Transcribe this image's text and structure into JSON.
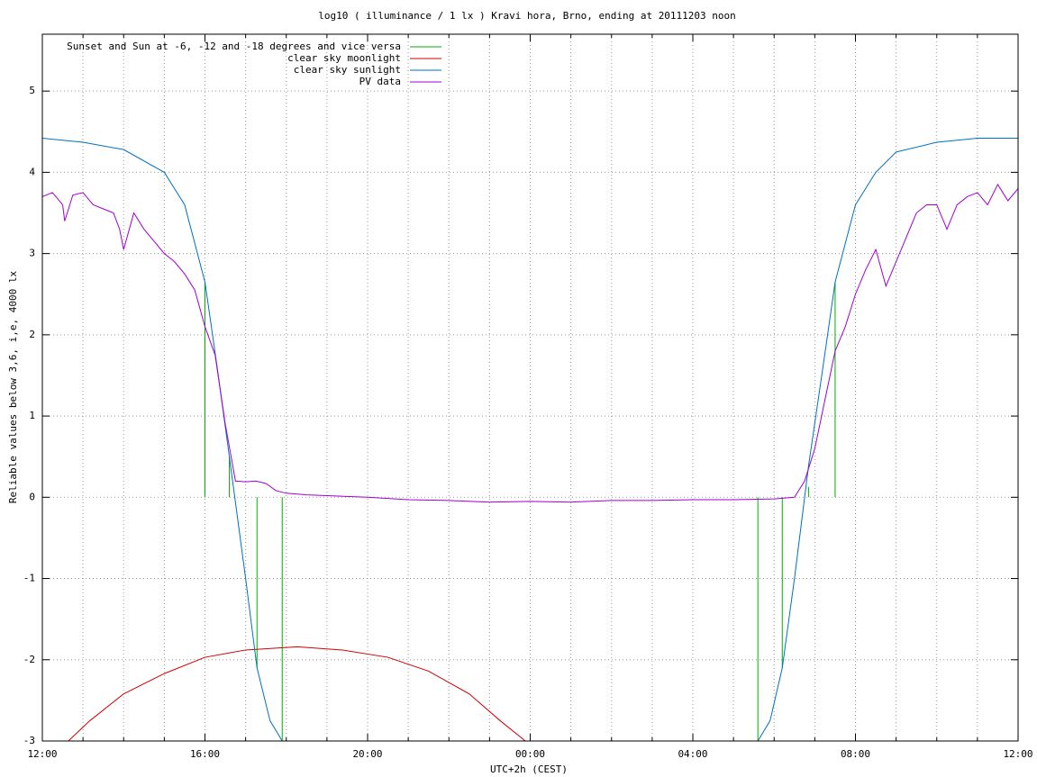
{
  "chart_data": {
    "type": "line",
    "title": "log10 ( illuminance / 1 lx ) Kravi hora, Brno, ending at 20111203 noon",
    "xlabel": "UTC+2h (CEST)",
    "ylabel": "Reliable values below 3,6, i,e, 4000 lx",
    "xlim": [
      0,
      24
    ],
    "xticks": [
      {
        "value": 0,
        "label": "12:00"
      },
      {
        "value": 4,
        "label": "16:00"
      },
      {
        "value": 8,
        "label": "20:00"
      },
      {
        "value": 12,
        "label": "00:00"
      },
      {
        "value": 16,
        "label": "04:00"
      },
      {
        "value": 20,
        "label": "08:00"
      },
      {
        "value": 24,
        "label": "12:00"
      }
    ],
    "xgrid": [
      1,
      2,
      3,
      5,
      6,
      7,
      9,
      10,
      11,
      13,
      14,
      15,
      17,
      18,
      19,
      21,
      22,
      23
    ],
    "ylim": [
      -3,
      5.7
    ],
    "yticks": [
      -3,
      -2,
      -1,
      0,
      1,
      2,
      3,
      4,
      5
    ],
    "grid": true,
    "legend": "top-left",
    "series": [
      {
        "name": "Sunset and Sun at -6, -12 and -18 degrees and vice versa",
        "color": "#00b000",
        "x": [
          4,
          4,
          null,
          4.6,
          4.6,
          null,
          5.28,
          5.28,
          null,
          5.9,
          5.9,
          null,
          17.6,
          17.6,
          null,
          18.2,
          18.2,
          null,
          18.85,
          18.85,
          null,
          19.5,
          19.5
        ],
        "values": [
          0,
          2.65,
          null,
          0,
          0.5,
          null,
          0,
          -2.1,
          null,
          0,
          -3,
          null,
          0,
          -3,
          null,
          0,
          -2.1,
          null,
          0,
          0.13,
          null,
          0,
          2.65
        ]
      },
      {
        "name": "clear sky moonlight",
        "color": "#d00000",
        "x": [
          0.64,
          1.17,
          2,
          3,
          4,
          5,
          6.27,
          7.38,
          8.5,
          9.5,
          10.5,
          11.26,
          11.88
        ],
        "values": [
          -3,
          -2.75,
          -2.42,
          -2.17,
          -1.97,
          -1.88,
          -1.84,
          -1.88,
          -1.97,
          -2.14,
          -2.42,
          -2.75,
          -3
        ]
      },
      {
        "name": "clear sky sunlight",
        "color": "#0070c0",
        "x": [
          0,
          1,
          2,
          3,
          3.5,
          4,
          4.3,
          4.6,
          5,
          5.28,
          5.6,
          5.9,
          17.6,
          17.9,
          18.2,
          18.5,
          18.85,
          19.2,
          19.5,
          20,
          20.5,
          21,
          22,
          23,
          24
        ],
        "values": [
          4.42,
          4.37,
          4.28,
          4.0,
          3.6,
          2.65,
          1.6,
          0.5,
          -1.0,
          -2.1,
          -2.75,
          -3,
          -3,
          -2.75,
          -2.1,
          -1.0,
          0.4,
          1.6,
          2.65,
          3.6,
          4.0,
          4.25,
          4.37,
          4.42,
          4.42
        ]
      },
      {
        "name": "PV data",
        "color": "#a000d0",
        "x": [
          0,
          0.25,
          0.5,
          0.55,
          0.75,
          1,
          1.25,
          1.5,
          1.75,
          1.9,
          2,
          2.25,
          2.5,
          2.75,
          3,
          3.25,
          3.5,
          3.75,
          4,
          4.25,
          4.5,
          4.75,
          5,
          5.25,
          5.5,
          5.75,
          6,
          6.5,
          7,
          8,
          9,
          10,
          11,
          12,
          13,
          14,
          15,
          16,
          17,
          18,
          18.5,
          18.75,
          19,
          19.25,
          19.5,
          19.75,
          20,
          20.25,
          20.5,
          20.75,
          21,
          21.25,
          21.5,
          21.75,
          22,
          22.25,
          22.5,
          22.75,
          23,
          23.25,
          23.5,
          23.75,
          24
        ],
        "values": [
          3.7,
          3.75,
          3.6,
          3.4,
          3.72,
          3.75,
          3.6,
          3.55,
          3.5,
          3.3,
          3.05,
          3.5,
          3.3,
          3.15,
          3.0,
          2.9,
          2.75,
          2.55,
          2.1,
          1.75,
          0.9,
          0.2,
          0.19,
          0.2,
          0.17,
          0.08,
          0.05,
          0.03,
          0.02,
          0.0,
          -0.03,
          -0.04,
          -0.06,
          -0.05,
          -0.06,
          -0.04,
          -0.04,
          -0.03,
          -0.03,
          -0.02,
          0.0,
          0.2,
          0.6,
          1.2,
          1.8,
          2.1,
          2.5,
          2.8,
          3.05,
          2.6,
          2.9,
          3.2,
          3.5,
          3.6,
          3.6,
          3.3,
          3.6,
          3.7,
          3.75,
          3.6,
          3.85,
          3.65,
          3.8
        ]
      }
    ]
  }
}
